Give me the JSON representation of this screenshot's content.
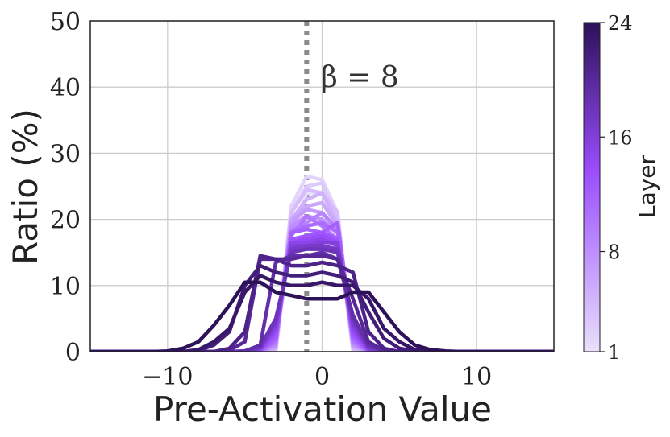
{
  "chart_data": {
    "type": "line",
    "xlabel": "Pre-Activation Value",
    "ylabel": "Ratio (%)",
    "xlim": [
      -15,
      15
    ],
    "ylim": [
      0,
      50
    ],
    "x_ticks": [
      -10,
      0,
      10
    ],
    "x_tick_labels": [
      "−10",
      "0",
      "10"
    ],
    "y_ticks": [
      0,
      10,
      20,
      30,
      40,
      50
    ],
    "y_tick_labels": [
      "0",
      "10",
      "20",
      "30",
      "40",
      "50"
    ],
    "grid": true,
    "vline": {
      "x": -1,
      "style": "dotted",
      "color": "#8a8a8a"
    },
    "annotation": {
      "text": "β = 8",
      "x": 0,
      "y": 42
    },
    "colorbar": {
      "label": "Layer",
      "min": 1,
      "max": 24,
      "ticks": [
        1,
        8,
        16,
        24
      ],
      "tick_labels": [
        "1",
        "8",
        "16",
        "24"
      ],
      "color_low": "#e9e0fb",
      "color_mid": "#9b4dff",
      "color_high": "#2d1159"
    },
    "x": [
      -15,
      -12,
      -11,
      -10,
      -9,
      -8,
      -7,
      -6,
      -5,
      -4,
      -3,
      -2,
      -1,
      0,
      1,
      2,
      3,
      4,
      5,
      6,
      7,
      8,
      9,
      10,
      11,
      12,
      15
    ],
    "series": [
      {
        "layer": 1,
        "values": [
          0,
          0,
          0,
          0,
          0,
          0,
          0,
          0,
          0,
          0,
          0,
          18.0,
          24.0,
          24.0,
          18.0,
          0,
          0,
          0,
          0,
          0,
          0,
          0,
          0,
          0,
          0,
          0,
          0
        ]
      },
      {
        "layer": 2,
        "values": [
          0,
          0,
          0,
          0,
          0,
          0,
          0,
          0,
          0,
          0,
          0,
          22.0,
          26.5,
          26.0,
          21.0,
          0.2,
          0,
          0,
          0,
          0,
          0,
          0,
          0,
          0,
          0,
          0,
          0
        ]
      },
      {
        "layer": 3,
        "values": [
          0,
          0,
          0,
          0,
          0,
          0,
          0,
          0,
          0,
          0,
          0.2,
          21.0,
          25.0,
          25.5,
          20.0,
          0.3,
          0,
          0,
          0,
          0,
          0,
          0,
          0,
          0,
          0,
          0,
          0
        ]
      },
      {
        "layer": 4,
        "values": [
          0,
          0,
          0,
          0,
          0,
          0,
          0,
          0,
          0,
          0,
          0.3,
          21.0,
          24.5,
          24.0,
          21.0,
          0.4,
          0,
          0,
          0,
          0,
          0,
          0,
          0,
          0,
          0,
          0,
          0
        ]
      },
      {
        "layer": 5,
        "values": [
          0,
          0,
          0,
          0,
          0,
          0,
          0,
          0,
          0,
          0,
          0.5,
          20.0,
          23.0,
          24.0,
          19.5,
          0.6,
          0,
          0,
          0,
          0,
          0,
          0,
          0,
          0,
          0,
          0,
          0
        ]
      },
      {
        "layer": 6,
        "values": [
          0,
          0,
          0,
          0,
          0,
          0,
          0,
          0,
          0,
          0,
          0.6,
          20.0,
          22.0,
          22.5,
          19.0,
          0.8,
          0,
          0,
          0,
          0,
          0,
          0,
          0,
          0,
          0,
          0,
          0
        ]
      },
      {
        "layer": 7,
        "values": [
          0,
          0,
          0,
          0,
          0,
          0,
          0,
          0,
          0,
          0,
          0.8,
          19.5,
          21.5,
          21.0,
          18.5,
          1.0,
          0,
          0,
          0,
          0,
          0,
          0,
          0,
          0,
          0,
          0,
          0
        ]
      },
      {
        "layer": 8,
        "values": [
          0,
          0,
          0,
          0,
          0,
          0,
          0,
          0,
          0,
          0,
          1.0,
          19.0,
          20.5,
          20.0,
          18.0,
          1.2,
          0,
          0,
          0,
          0,
          0,
          0,
          0,
          0,
          0,
          0,
          0
        ]
      },
      {
        "layer": 9,
        "values": [
          0,
          0,
          0,
          0,
          0,
          0,
          0,
          0,
          0,
          0,
          1.2,
          18.5,
          19.5,
          21.0,
          18.5,
          1.4,
          0,
          0,
          0,
          0,
          0,
          0,
          0,
          0,
          0,
          0,
          0
        ]
      },
      {
        "layer": 10,
        "values": [
          0,
          0,
          0,
          0,
          0,
          0,
          0,
          0,
          0,
          0,
          1.5,
          17.5,
          20.5,
          19.0,
          17.0,
          1.6,
          0,
          0,
          0,
          0,
          0,
          0,
          0,
          0,
          0,
          0,
          0
        ]
      },
      {
        "layer": 11,
        "values": [
          0,
          0,
          0,
          0,
          0,
          0,
          0,
          0,
          0,
          0.1,
          1.8,
          18.0,
          19.0,
          19.5,
          18.0,
          2.0,
          0.1,
          0,
          0,
          0,
          0,
          0,
          0,
          0,
          0,
          0,
          0
        ]
      },
      {
        "layer": 12,
        "values": [
          0,
          0,
          0,
          0,
          0,
          0,
          0,
          0,
          0,
          0.1,
          2.0,
          18.0,
          18.5,
          18.0,
          19.5,
          2.2,
          0.1,
          0,
          0,
          0,
          0,
          0,
          0,
          0,
          0,
          0,
          0
        ]
      },
      {
        "layer": 13,
        "values": [
          0,
          0,
          0,
          0,
          0,
          0,
          0,
          0,
          0,
          0.2,
          2.5,
          17.0,
          17.5,
          18.0,
          17.0,
          2.6,
          0.2,
          0,
          0,
          0,
          0,
          0,
          0,
          0,
          0,
          0,
          0
        ]
      },
      {
        "layer": 14,
        "values": [
          0,
          0,
          0,
          0,
          0,
          0,
          0,
          0,
          0,
          0.3,
          3.0,
          16.5,
          17.0,
          17.5,
          16.5,
          3.0,
          0.3,
          0,
          0,
          0,
          0,
          0,
          0,
          0,
          0,
          0,
          0
        ]
      },
      {
        "layer": 15,
        "values": [
          0,
          0,
          0,
          0,
          0,
          0,
          0,
          0,
          0,
          0.4,
          3.5,
          16.5,
          16.5,
          17.0,
          16.0,
          3.5,
          0.4,
          0,
          0,
          0,
          0,
          0,
          0,
          0,
          0,
          0,
          0
        ]
      },
      {
        "layer": 16,
        "values": [
          0,
          0,
          0,
          0,
          0,
          0,
          0,
          0,
          0,
          0.5,
          4.0,
          16.0,
          16.0,
          16.5,
          16.5,
          4.0,
          0.5,
          0,
          0,
          0,
          0,
          0,
          0,
          0,
          0,
          0,
          0
        ]
      },
      {
        "layer": 17,
        "values": [
          0,
          0,
          0,
          0,
          0,
          0,
          0,
          0,
          0,
          0.6,
          4.5,
          15.5,
          16.0,
          16.0,
          15.5,
          4.5,
          0.6,
          0,
          0,
          0,
          0,
          0,
          0,
          0,
          0,
          0,
          0
        ]
      },
      {
        "layer": 18,
        "values": [
          0,
          0,
          0,
          0,
          0,
          0,
          0,
          0,
          0.1,
          0.8,
          5.0,
          15.0,
          15.5,
          15.5,
          15.0,
          5.0,
          0.8,
          0.1,
          0,
          0,
          0,
          0,
          0,
          0,
          0,
          0,
          0
        ]
      },
      {
        "layer": 19,
        "values": [
          0,
          0,
          0,
          0,
          0,
          0,
          0,
          0,
          0.1,
          1.0,
          13.5,
          14.5,
          14.5,
          15.0,
          14.0,
          5.5,
          1.0,
          0.1,
          0,
          0,
          0,
          0,
          0,
          0,
          0,
          0,
          0
        ]
      },
      {
        "layer": 20,
        "values": [
          0,
          0,
          0,
          0,
          0,
          0,
          0,
          0.2,
          1.5,
          14.0,
          14.0,
          14.0,
          14.5,
          14.5,
          14.0,
          8.0,
          1.5,
          0.2,
          0,
          0,
          0,
          0,
          0,
          0,
          0,
          0,
          0
        ]
      },
      {
        "layer": 21,
        "values": [
          0,
          0,
          0,
          0,
          0,
          0,
          0,
          0.5,
          3.0,
          14.5,
          14.0,
          13.0,
          13.0,
          13.5,
          13.0,
          12.0,
          3.0,
          0.5,
          0,
          0,
          0,
          0,
          0,
          0,
          0,
          0,
          0
        ]
      },
      {
        "layer": 22,
        "values": [
          0,
          0,
          0,
          0,
          0,
          0.2,
          1.0,
          3.0,
          10.0,
          13.0,
          12.0,
          11.5,
          11.5,
          12.0,
          11.5,
          10.5,
          6.0,
          2.0,
          0.5,
          0.1,
          0,
          0,
          0,
          0,
          0,
          0,
          0
        ]
      },
      {
        "layer": 23,
        "values": [
          0,
          0,
          0,
          0,
          0,
          0.3,
          1.5,
          3.5,
          9.0,
          11.5,
          10.5,
          10.0,
          10.0,
          10.5,
          10.0,
          10.0,
          8.0,
          3.5,
          1.5,
          0.3,
          0.1,
          0,
          0,
          0,
          0,
          0,
          0
        ]
      },
      {
        "layer": 24,
        "values": [
          0,
          0,
          0,
          0.1,
          0.5,
          1.5,
          4.0,
          7.0,
          10.5,
          10.5,
          9.0,
          8.5,
          8.0,
          8.0,
          8.0,
          9.0,
          9.0,
          6.0,
          3.0,
          1.0,
          0.3,
          0.1,
          0,
          0,
          0,
          0,
          0
        ]
      }
    ]
  }
}
